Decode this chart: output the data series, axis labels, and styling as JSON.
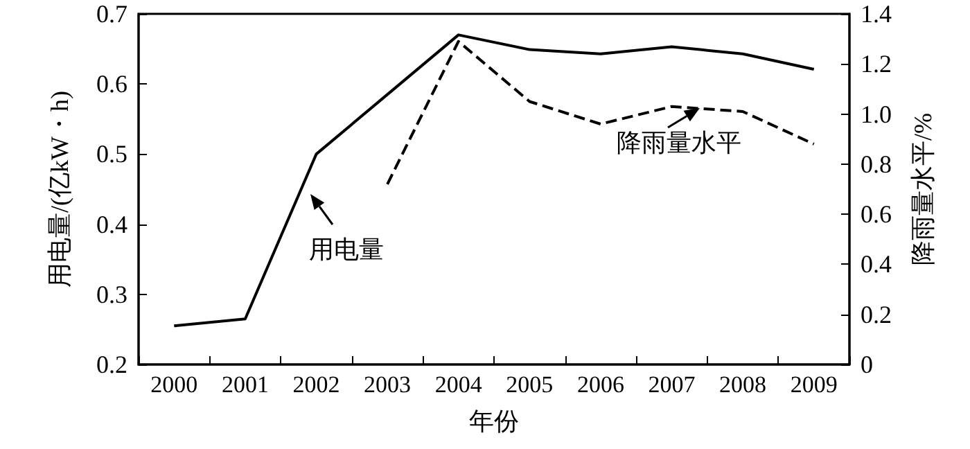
{
  "chart_data": {
    "type": "line",
    "xlabel": "年份",
    "ylabel": "用电量/(亿kW・h)",
    "y2label": "降雨量水平/%",
    "categories": [
      "2000",
      "2001",
      "2002",
      "2003",
      "2004",
      "2005",
      "2006",
      "2007",
      "2008",
      "2009"
    ],
    "series": [
      {
        "color": "#000000",
        "line_style": "solid",
        "values": [
          0.255,
          0.265,
          0.5,
          0.585,
          0.67,
          0.649,
          0.643,
          0.653,
          0.643,
          0.621
        ]
      },
      {
        "color": "#000000",
        "line_style": "dashed",
        "axis": "y2",
        "values": [
          null,
          null,
          null,
          0.72,
          1.29,
          1.05,
          0.96,
          1.03,
          1.01,
          0.88
        ]
      }
    ],
    "ylim": [
      0.2,
      0.7
    ],
    "yticks": [
      0.2,
      0.3,
      0.4,
      0.5,
      0.6,
      0.7
    ],
    "y2lim": [
      0,
      1.4
    ],
    "y2ticks": [
      0,
      0.2,
      0.4,
      0.6,
      0.8,
      {
        "value": 1,
        "label": "1.0"
      },
      1.2,
      1.4
    ],
    "annotations": [
      "用电量",
      "降雨量水平"
    ],
    "marker": "none",
    "grid": false
  }
}
